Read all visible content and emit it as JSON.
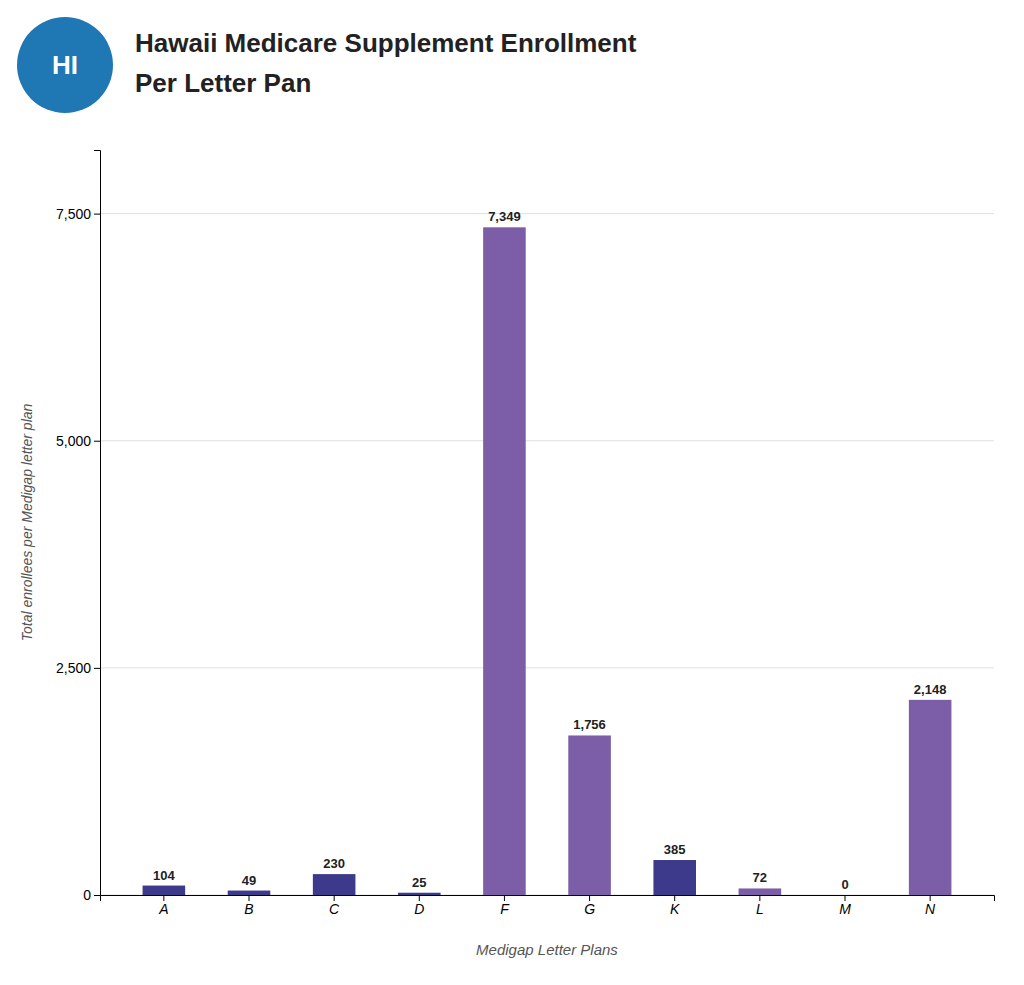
{
  "chart_data": {
    "type": "bar",
    "title": "Hawaii Medicare Supplement Enrollment",
    "subtitle": "Per Letter Pan",
    "annotations": [
      {
        "text": "HI"
      }
    ],
    "x_label": "Medigap Letter Plans",
    "y_label": "Total enrollees per Medigap letter plan",
    "categories": [
      "A",
      "B",
      "C",
      "D",
      "F",
      "G",
      "K",
      "L",
      "M",
      "N"
    ],
    "values": [
      104,
      49,
      230,
      25,
      7349,
      1756,
      385,
      72,
      0,
      2148
    ],
    "value_labels": [
      "104",
      "49",
      "230",
      "25",
      "7,349",
      "1,756",
      "385",
      "72",
      "0",
      "2,148"
    ],
    "colors": [
      "#3d3a8c",
      "#3d3a8c",
      "#3d3a8c",
      "#3d3a8c",
      "#7b5ea7",
      "#7b5ea7",
      "#3d3a8c",
      "#7b5ea7",
      "#7b5ea7",
      "#7b5ea7"
    ],
    "ylim": [
      0,
      8200
    ],
    "yticks": [
      0,
      {
        "value": 2500,
        "label": "2,500"
      },
      {
        "value": 5000,
        "label": "5,000"
      },
      {
        "value": 7500,
        "label": "7,500"
      }
    ],
    "grid": true,
    "data_labels": true
  }
}
